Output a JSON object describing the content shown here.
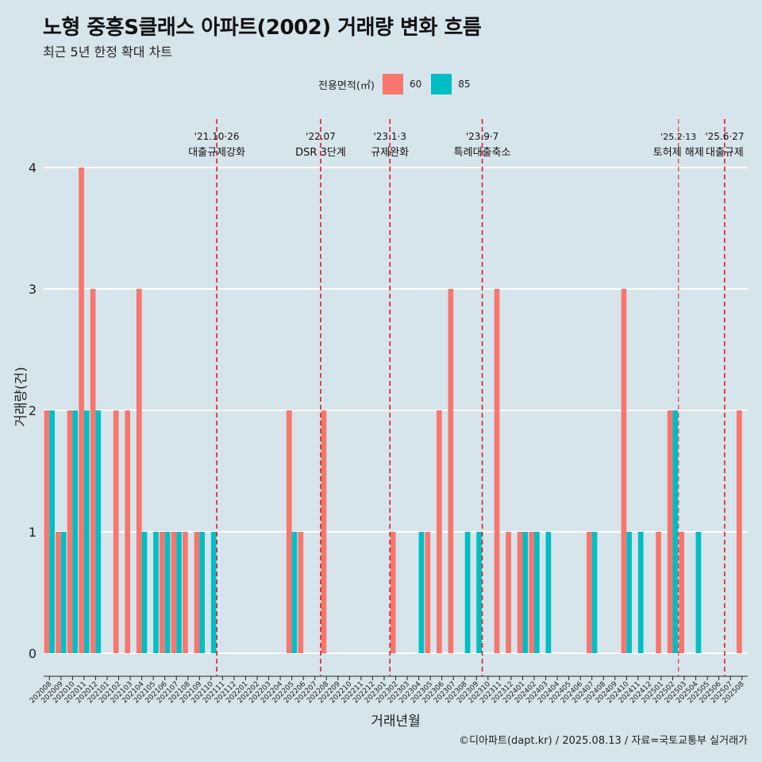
{
  "title": "노형 중흥S클래스 아파트(2002) 거래량 변화 흐름",
  "subtitle": "최근 5년 한정 확대 차트",
  "caption": "©디아파트(dapt.kr) / 2025.08.13 / 자료=국토교통부 실거래가",
  "legend": {
    "title": "전용면적(㎡)",
    "items": [
      {
        "label": "60",
        "color": "#f8766d"
      },
      {
        "label": "85",
        "color": "#00bfc4"
      }
    ]
  },
  "chart_data": {
    "type": "bar",
    "xlabel": "거래년월",
    "ylabel": "거래량(건)",
    "ylim": [
      0,
      4
    ],
    "yticks": [
      0,
      1,
      2,
      3,
      4
    ],
    "grid": true,
    "legend_position": "top",
    "categories": [
      "202008",
      "202009",
      "202010",
      "202011",
      "202012",
      "202101",
      "202102",
      "202103",
      "202104",
      "202105",
      "202106",
      "202107",
      "202108",
      "202109",
      "202110",
      "202111",
      "202112",
      "202201",
      "202202",
      "202203",
      "202204",
      "202205",
      "202206",
      "202207",
      "202208",
      "202209",
      "202210",
      "202211",
      "202212",
      "202301",
      "202302",
      "202303",
      "202304",
      "202305",
      "202306",
      "202307",
      "202308",
      "202309",
      "202310",
      "202311",
      "202312",
      "202401",
      "202402",
      "202403",
      "202404",
      "202405",
      "202406",
      "202407",
      "202408",
      "202409",
      "202410",
      "202411",
      "202412",
      "202501",
      "202502",
      "202503",
      "202504",
      "202505",
      "202506",
      "202507",
      "202508"
    ],
    "series": [
      {
        "name": "60",
        "color": "#f8766d",
        "values": [
          2,
          1,
          2,
          4,
          3,
          0,
          2,
          2,
          3,
          0,
          1,
          1,
          1,
          1,
          0,
          0,
          0,
          0,
          0,
          0,
          0,
          2,
          1,
          0,
          2,
          0,
          0,
          0,
          0,
          0,
          1,
          0,
          0,
          1,
          2,
          3,
          0,
          0,
          0,
          3,
          1,
          1,
          1,
          0,
          0,
          0,
          0,
          1,
          0,
          0,
          3,
          0,
          0,
          1,
          2,
          1,
          0,
          0,
          0,
          0,
          2
        ]
      },
      {
        "name": "85",
        "color": "#00bfc4",
        "values": [
          2,
          1,
          2,
          2,
          2,
          0,
          0,
          0,
          1,
          1,
          1,
          1,
          0,
          1,
          1,
          0,
          0,
          0,
          0,
          0,
          0,
          1,
          0,
          0,
          0,
          0,
          0,
          0,
          0,
          0,
          0,
          0,
          1,
          0,
          0,
          0,
          1,
          1,
          0,
          0,
          0,
          1,
          1,
          1,
          0,
          0,
          0,
          1,
          0,
          0,
          1,
          1,
          0,
          0,
          2,
          0,
          1,
          0,
          0,
          0,
          0
        ]
      }
    ],
    "annotations": [
      {
        "date": "'21.10·26",
        "label": "대출규제강화",
        "after": "202110",
        "style": "bold"
      },
      {
        "date": "'22.07",
        "label": "DSR 3단계",
        "after": "202207",
        "style": "bold"
      },
      {
        "date": "'23.1·3",
        "label": "규제완화",
        "after": "202301",
        "style": "bold"
      },
      {
        "date": "'23.9·7",
        "label": "특례대출축소",
        "after": "202309",
        "style": "bold"
      },
      {
        "date": "'25.2·13",
        "label": "토허제 해제",
        "after": "202502",
        "style": "thin"
      },
      {
        "date": "'25.6·27",
        "label": "대출규제",
        "after": "202506",
        "style": "bold"
      }
    ]
  }
}
